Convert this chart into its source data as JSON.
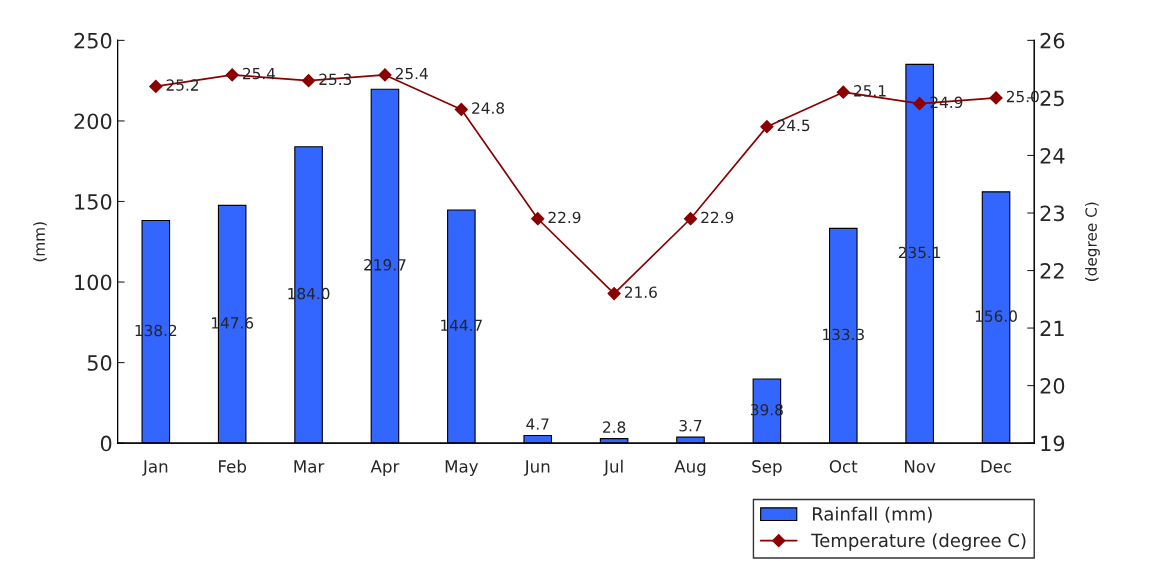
{
  "chart_data": {
    "type": "bar",
    "categories": [
      "Jan",
      "Feb",
      "Mar",
      "Apr",
      "May",
      "Jun",
      "Jul",
      "Aug",
      "Sep",
      "Oct",
      "Nov",
      "Dec"
    ],
    "series": [
      {
        "name": "Rainfall (mm)",
        "color": "#3366ff",
        "values": [
          138.2,
          147.6,
          184.0,
          219.7,
          144.7,
          4.7,
          2.8,
          3.7,
          39.8,
          133.3,
          235.1,
          156.0
        ],
        "value_labels": [
          "138.2",
          "147.6",
          "184.0",
          "219.7",
          "144.7",
          "4.7",
          "2.8",
          "3.7",
          "39.8",
          "133.3",
          "235.1",
          "156.0"
        ]
      },
      {
        "name": "Temperature (degree C)",
        "type": "line",
        "axis": "y2",
        "color": "#8b0000",
        "marker": "diamond",
        "values": [
          25.2,
          25.4,
          25.3,
          25.4,
          24.8,
          22.9,
          21.6,
          22.9,
          24.5,
          25.1,
          24.9,
          25.0
        ],
        "value_labels": [
          "25.2",
          "25.4",
          "25.3",
          "25.4",
          "24.8",
          "22.9",
          "21.6",
          "22.9",
          "24.5",
          "25.1",
          "24.9",
          "25.0"
        ]
      }
    ],
    "ylabel": "(mm)",
    "y2label": "(degree C)",
    "ylim": [
      0,
      250
    ],
    "yticks": [
      0,
      50,
      100,
      150,
      200,
      250
    ],
    "y2lim": [
      19,
      26
    ],
    "y2ticks": [
      19,
      20,
      21,
      22,
      23,
      24,
      25,
      26
    ],
    "legend": "bottom right"
  }
}
